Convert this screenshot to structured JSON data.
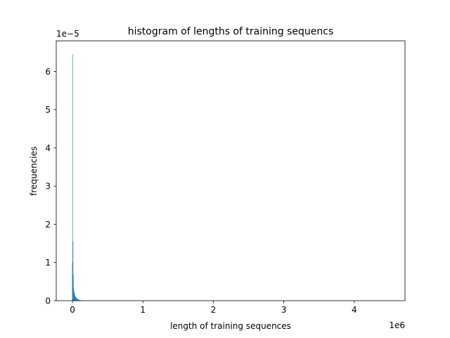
{
  "chart_data": {
    "type": "bar",
    "title": "histogram of lengths of training sequencs",
    "xlabel": "length of training sequences",
    "ylabel": "frequencies",
    "x_multiplier_label": "1e6",
    "y_multiplier_label": "1e−5",
    "xlim": [
      -0.23,
      4.72
    ],
    "ylim": [
      0,
      6.8
    ],
    "x_ticks": [
      0,
      1,
      2,
      3,
      4
    ],
    "x_tick_labels": [
      "0",
      "1",
      "2",
      "3",
      "4"
    ],
    "y_ticks": [
      0,
      1,
      2,
      3,
      4,
      5,
      6
    ],
    "y_tick_labels": [
      "0",
      "1",
      "2",
      "3",
      "4",
      "5",
      "6"
    ],
    "bar_color": "#1f77b4",
    "grid": false,
    "legend": "none",
    "bin_width": 0.005,
    "bin_starts": [
      -0.005,
      0.0,
      0.005,
      0.01,
      0.015,
      0.02,
      0.025,
      0.03,
      0.035,
      0.04,
      0.045,
      0.05,
      0.055,
      0.06,
      0.065,
      0.07,
      0.075,
      0.08,
      0.085,
      0.09,
      0.095,
      0.1,
      0.105,
      0.11,
      0.115,
      0.12,
      0.125,
      0.13,
      0.135,
      0.14,
      0.145,
      0.15,
      0.155,
      0.16,
      0.165,
      0.17,
      0.175,
      0.18,
      0.185,
      0.19,
      0.195
    ],
    "values": [
      1.0,
      6.45,
      1.55,
      0.68,
      0.35,
      0.26,
      0.2,
      0.16,
      0.13,
      0.11,
      0.09,
      0.08,
      0.07,
      0.06,
      0.05,
      0.045,
      0.04,
      0.035,
      0.03,
      0.025,
      0.02,
      0.018,
      0.016,
      0.014,
      0.012,
      0.01,
      0.009,
      0.008,
      0.007,
      0.006,
      0.005,
      0.004,
      0.004,
      0.003,
      0.003,
      0.002,
      0.002,
      0.002,
      0.001,
      0.001,
      0.001
    ]
  }
}
